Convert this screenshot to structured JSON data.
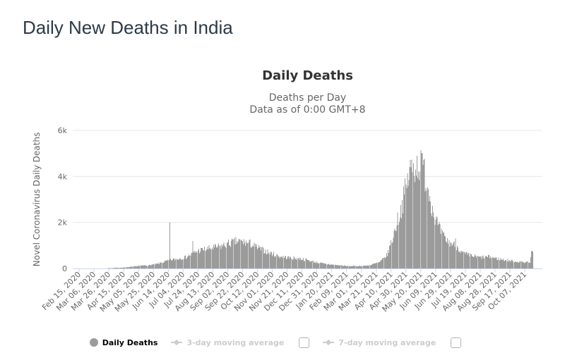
{
  "page": {
    "title": "Daily New Deaths in India"
  },
  "chart": {
    "title": "Daily Deaths",
    "subtitle_line1": "Deaths per Day",
    "subtitle_line2": "Data as of 0:00 GMT+8",
    "y_axis_title": "Novel Coronavirus Daily Deaths",
    "legend": {
      "items": [
        {
          "label": "Daily Deaths",
          "marker": "circle",
          "active": true,
          "checkbox": false
        },
        {
          "label": "3-day moving average",
          "marker": "line-diamond",
          "active": false,
          "checkbox": true,
          "checkbox_checked": false
        },
        {
          "label": "7-day moving average",
          "marker": "line-diamond",
          "active": false,
          "checkbox": true,
          "checkbox_checked": false
        }
      ]
    }
  },
  "chart_data": {
    "type": "bar",
    "title": "Daily Deaths",
    "series_name": "Daily Deaths",
    "xlabel": "",
    "ylabel": "Novel Coronavirus Daily Deaths",
    "ylim": [
      0,
      6000
    ],
    "y_tick_labels": [
      "0",
      "2k",
      "4k",
      "6k"
    ],
    "y_tick_values": [
      0,
      2000,
      4000,
      6000
    ],
    "grid": "horizontal-only",
    "legend_position": "bottom-center",
    "start_date": "2020-02-15",
    "end_date": "2021-10-18",
    "x_tick_interval_days": 20,
    "x_tick_labels": [
      "Feb 15, 2020",
      "Mar 06, 2020",
      "Mar 26, 2020",
      "Apr 15, 2020",
      "May 05, 2020",
      "May 25, 2020",
      "Jun 14, 2020",
      "Jul 04, 2020",
      "Jul 24, 2020",
      "Aug 13, 2020",
      "Sep 02, 2020",
      "Sep 22, 2020",
      "Oct 12, 2020",
      "Nov 01, 2020",
      "Nov 21, 2020",
      "Dec 11, 2020",
      "Dec 31, 2020",
      "Jan 20, 2021",
      "Feb 09, 2021",
      "Mar 01, 2021",
      "Mar 21, 2021",
      "Apr 10, 2021",
      "Apr 30, 2021",
      "May 20, 2021",
      "Jun 09, 2021",
      "Jun 29, 2021",
      "Jul 19, 2021",
      "Aug 08, 2021",
      "Aug 28, 2021",
      "Sep 17, 2021",
      "Oct 07, 2021"
    ],
    "anchors": [
      [
        "2020-02-15",
        0
      ],
      [
        "2020-03-06",
        0
      ],
      [
        "2020-03-21",
        3
      ],
      [
        "2020-04-05",
        25
      ],
      [
        "2020-04-20",
        50
      ],
      [
        "2020-05-05",
        110
      ],
      [
        "2020-05-20",
        140
      ],
      [
        "2020-06-01",
        210
      ],
      [
        "2020-06-14",
        340
      ],
      [
        "2020-06-24",
        400
      ],
      [
        "2020-07-09",
        500
      ],
      [
        "2020-07-24",
        770
      ],
      [
        "2020-08-08",
        860
      ],
      [
        "2020-08-23",
        950
      ],
      [
        "2020-09-07",
        1120
      ],
      [
        "2020-09-17",
        1180
      ],
      [
        "2020-10-02",
        1080
      ],
      [
        "2020-10-12",
        900
      ],
      [
        "2020-10-27",
        700
      ],
      [
        "2020-11-11",
        520
      ],
      [
        "2020-11-26",
        460
      ],
      [
        "2020-12-11",
        420
      ],
      [
        "2020-12-26",
        300
      ],
      [
        "2021-01-10",
        200
      ],
      [
        "2021-01-25",
        155
      ],
      [
        "2021-02-09",
        105
      ],
      [
        "2021-02-24",
        100
      ],
      [
        "2021-03-11",
        130
      ],
      [
        "2021-03-26",
        270
      ],
      [
        "2021-04-05",
        600
      ],
      [
        "2021-04-12",
        1300
      ],
      [
        "2021-04-18",
        2000
      ],
      [
        "2021-04-25",
        2750
      ],
      [
        "2021-04-30",
        3500
      ],
      [
        "2021-05-06",
        4300
      ],
      [
        "2021-05-12",
        4450
      ],
      [
        "2021-05-18",
        4500
      ],
      [
        "2021-05-24",
        4350
      ],
      [
        "2021-05-30",
        3500
      ],
      [
        "2021-06-05",
        2600
      ],
      [
        "2021-06-12",
        1850
      ],
      [
        "2021-06-19",
        1400
      ],
      [
        "2021-06-26",
        1150
      ],
      [
        "2021-07-03",
        1050
      ],
      [
        "2021-07-08",
        950
      ],
      [
        "2021-07-15",
        680
      ],
      [
        "2021-07-25",
        560
      ],
      [
        "2021-08-08",
        480
      ],
      [
        "2021-08-20",
        510
      ],
      [
        "2021-09-01",
        420
      ],
      [
        "2021-09-12",
        360
      ],
      [
        "2021-09-24",
        310
      ],
      [
        "2021-10-05",
        270
      ],
      [
        "2021-10-14",
        290
      ],
      [
        "2021-10-16",
        700
      ],
      [
        "2021-10-18",
        620
      ]
    ],
    "spikes": {
      "2020-06-16": 2000,
      "2020-07-17": 1200,
      "2021-05-21": 5000,
      "2021-07-06": 1300,
      "2021-10-17": 760
    },
    "noise": {
      "seed": 7,
      "amplitude": 0.18
    },
    "colors": {
      "bar": "#9b9b9b",
      "grid": "#e6e6e6",
      "axis_line": "#ccd6eb",
      "axis_text": "#666666",
      "chart_title": "#333333",
      "page_title": "#2c3a47",
      "legend_inactive": "#cccccc"
    }
  }
}
